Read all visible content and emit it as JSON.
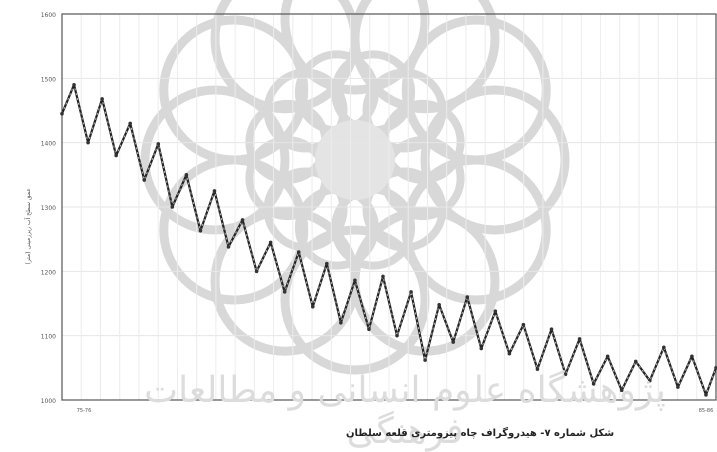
{
  "caption": "شکل شماره ۷- هیدروگراف چاه پیزومتری قلعه سلطان",
  "watermark_text": "پژوهشگاه علوم انسانی و مطالعات فرهنگی",
  "chart_data": {
    "type": "line",
    "title": "",
    "xlabel": "",
    "ylabel": "عمق سطح آب زیرزمینی (متر)",
    "ylim": [
      1000,
      1600
    ],
    "yticks": [
      "1000",
      "1100",
      "1200",
      "1300",
      "1400",
      "1500",
      "1600"
    ],
    "xticks": [
      "75-76",
      "85-86"
    ],
    "grid": true,
    "series": [
      {
        "x": [
          0,
          1,
          2,
          3,
          4,
          5,
          6,
          7,
          8,
          9,
          10,
          11,
          12,
          13,
          14,
          15,
          16,
          17,
          18,
          19,
          20,
          21,
          22,
          23,
          24,
          25,
          26,
          27,
          28,
          29,
          30,
          31,
          32,
          33,
          34,
          35,
          36,
          37,
          38,
          39,
          40,
          41,
          42,
          43,
          44,
          45,
          46,
          47,
          48,
          49,
          50,
          51,
          52,
          53,
          54,
          55,
          56,
          57,
          58,
          59,
          60,
          61,
          62,
          63,
          64,
          65,
          66,
          67,
          68,
          69,
          70,
          71,
          72,
          73,
          74,
          75,
          76,
          77,
          78,
          79,
          80,
          81,
          82,
          83,
          84,
          85,
          86,
          87,
          88,
          89,
          90,
          91,
          92,
          93,
          94,
          95,
          96,
          97,
          98,
          99,
          100,
          101,
          102,
          103,
          104,
          105,
          106,
          107,
          108,
          109,
          110,
          111,
          112,
          113,
          114,
          115,
          116,
          117,
          118,
          119,
          120,
          121,
          122,
          123,
          124,
          125,
          126,
          127,
          128,
          129,
          130,
          131,
          132,
          133,
          134,
          135,
          136,
          137,
          138,
          139,
          140,
          141,
          142,
          143,
          144,
          145,
          146,
          147,
          148,
          149,
          150,
          151,
          152,
          153,
          154,
          155,
          156,
          157,
          158,
          159,
          160,
          161,
          162,
          163,
          164,
          165,
          166,
          167,
          168,
          169,
          170,
          171,
          172,
          173,
          174,
          175,
          176,
          177,
          178,
          179,
          180,
          181,
          182,
          183,
          184,
          185,
          186,
          187,
          188,
          189,
          190,
          191,
          192,
          193,
          194,
          195,
          196,
          197,
          198,
          199,
          200,
          201,
          202,
          203,
          204,
          205,
          206,
          207,
          208,
          209,
          210,
          211,
          212,
          213,
          214,
          215,
          216,
          217,
          218,
          219,
          220,
          221,
          222,
          223,
          224,
          225,
          226,
          227,
          228,
          229,
          230,
          231,
          232,
          233,
          234,
          235,
          236,
          237,
          238,
          239,
          240,
          241,
          242,
          243,
          244,
          245,
          246,
          247,
          248,
          249,
          250,
          251,
          252,
          253,
          254,
          255,
          256,
          257,
          258,
          259,
          260,
          261,
          262,
          263,
          264,
          265,
          266,
          267,
          268,
          269,
          270,
          271,
          272,
          273,
          274,
          275,
          276,
          277,
          278,
          279,
          280,
          281,
          282,
          283,
          284,
          285,
          286,
          287,
          288,
          289,
          290,
          291,
          292,
          293,
          294,
          295,
          296,
          297,
          298,
          299,
          300,
          301,
          302,
          303,
          304,
          305,
          306,
          307,
          308,
          309,
          310,
          311,
          312,
          313,
          314,
          315,
          316,
          317,
          318,
          319,
          320,
          321,
          322,
          323,
          324,
          325,
          326,
          327,
          328,
          329,
          330,
          331,
          332,
          333,
          334,
          335,
          336,
          337,
          338,
          339,
          340,
          341,
          342,
          343,
          344,
          345,
          346,
          347,
          348,
          349,
          350,
          351,
          352,
          353,
          354,
          355,
          356,
          357,
          358,
          359,
          360,
          361,
          362,
          363,
          364,
          365,
          366,
          367,
          368,
          369,
          370,
          371,
          372,
          373,
          374,
          375,
          376,
          377,
          378,
          379,
          380,
          381,
          382,
          383,
          384,
          385,
          386,
          387,
          388,
          389,
          390,
          391,
          392,
          393,
          394,
          395,
          396,
          397,
          398,
          399,
          400,
          401,
          402,
          403,
          404,
          405,
          406,
          407,
          408,
          409,
          410,
          411,
          412,
          413,
          414,
          415,
          416,
          417,
          418,
          419,
          420,
          421,
          422,
          423,
          424,
          425,
          426,
          427,
          428,
          429,
          430,
          431,
          432,
          433,
          434,
          435,
          436,
          437,
          438,
          439,
          440,
          441,
          442,
          443,
          444,
          445,
          446,
          447,
          448,
          449,
          450,
          451,
          452,
          453,
          454,
          455,
          456,
          457,
          458,
          459,
          460,
          461,
          462,
          463,
          464,
          465,
          466,
          467,
          468,
          469,
          470,
          471,
          472,
          473,
          474,
          475,
          476,
          477,
          478,
          479,
          480,
          481,
          482,
          483,
          484,
          485,
          486,
          487,
          488,
          489,
          490,
          491,
          492,
          493,
          494,
          495,
          496,
          497,
          498,
          499,
          500,
          501,
          502,
          503,
          504,
          505,
          506,
          507,
          508,
          509,
          510,
          511,
          512,
          513,
          514,
          515,
          516,
          517,
          518,
          519,
          520,
          521,
          522,
          523,
          524,
          525,
          526,
          527,
          528,
          529,
          530,
          531,
          532,
          533,
          534,
          535,
          536,
          537,
          538,
          539,
          540,
          541,
          542,
          543,
          544,
          545,
          546,
          547,
          548,
          549,
          550,
          551,
          552,
          553,
          554,
          555,
          556,
          557,
          558,
          559,
          560,
          561,
          562,
          563,
          564,
          565,
          566,
          567,
          568,
          569,
          570,
          571,
          572,
          573,
          574,
          575,
          576,
          577,
          578,
          579,
          580,
          581,
          582,
          583,
          584,
          585,
          586,
          587,
          588,
          589,
          590,
          591,
          592,
          593,
          594,
          595,
          596,
          597,
          598,
          599,
          600,
          601,
          602,
          603,
          604,
          605,
          606,
          607,
          608,
          609,
          610,
          611,
          612,
          613,
          614,
          615,
          616,
          617,
          618,
          619,
          620,
          621,
          622,
          623,
          624,
          625,
          626,
          627,
          628,
          629,
          630,
          631,
          632,
          633,
          634,
          635,
          636,
          637,
          638,
          639,
          640,
          641,
          642,
          643,
          644,
          645,
          646,
          647,
          648,
          649,
          650,
          651
        ],
        "keypoints": [
          [
            0,
            1445
          ],
          [
            12,
            1490
          ],
          [
            26,
            1400
          ],
          [
            40,
            1468
          ],
          [
            54,
            1380
          ],
          [
            68,
            1430
          ],
          [
            82,
            1342
          ],
          [
            96,
            1398
          ],
          [
            110,
            1300
          ],
          [
            124,
            1350
          ],
          [
            138,
            1263
          ],
          [
            152,
            1325
          ],
          [
            166,
            1238
          ],
          [
            180,
            1280
          ],
          [
            194,
            1200
          ],
          [
            208,
            1245
          ],
          [
            222,
            1168
          ],
          [
            236,
            1230
          ],
          [
            250,
            1145
          ],
          [
            264,
            1212
          ],
          [
            278,
            1120
          ],
          [
            292,
            1186
          ],
          [
            306,
            1110
          ],
          [
            320,
            1192
          ],
          [
            334,
            1100
          ],
          [
            348,
            1168
          ],
          [
            362,
            1062
          ],
          [
            376,
            1148
          ],
          [
            390,
            1090
          ],
          [
            404,
            1160
          ],
          [
            418,
            1080
          ],
          [
            432,
            1138
          ],
          [
            446,
            1072
          ],
          [
            460,
            1117
          ],
          [
            474,
            1048
          ],
          [
            488,
            1110
          ],
          [
            502,
            1040
          ],
          [
            516,
            1095
          ],
          [
            530,
            1025
          ],
          [
            544,
            1068
          ],
          [
            558,
            1015
          ],
          [
            572,
            1060
          ],
          [
            586,
            1030
          ],
          [
            600,
            1082
          ],
          [
            614,
            1020
          ],
          [
            628,
            1068
          ],
          [
            642,
            1008
          ],
          [
            652,
            1050
          ]
        ]
      }
    ]
  }
}
